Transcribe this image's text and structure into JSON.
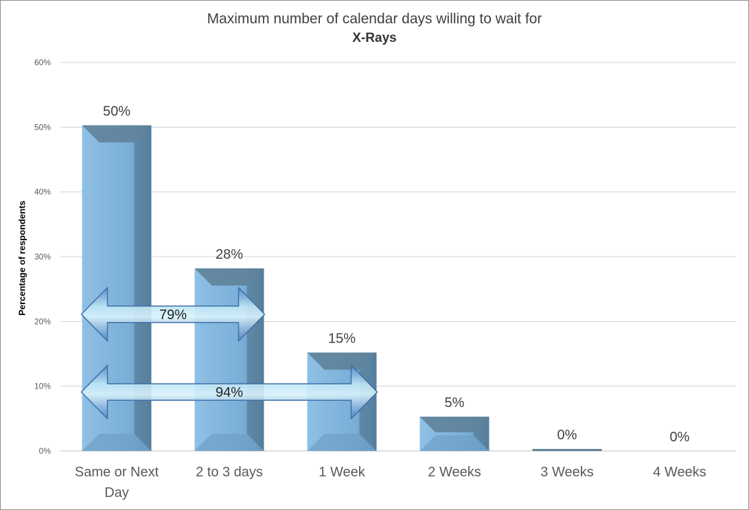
{
  "chart_data": {
    "type": "bar",
    "title": "Maximum number of calendar days willing to wait for",
    "subtitle": "X-Rays",
    "xlabel": "",
    "ylabel": "Percentage of respondents",
    "categories": [
      [
        "Same or Next",
        "Day"
      ],
      [
        "2 to 3 days"
      ],
      [
        "1 Week"
      ],
      [
        "2 Weeks"
      ],
      [
        "3 Weeks"
      ],
      [
        "4 Weeks"
      ]
    ],
    "values": [
      50.3,
      28.2,
      15.2,
      5.3,
      0.3,
      0
    ],
    "data_labels": [
      "50%",
      "28%",
      "15%",
      "5%",
      "0%",
      "0%"
    ],
    "ylim": [
      0,
      60
    ],
    "yticks": [
      0,
      10,
      20,
      30,
      40,
      50,
      60
    ],
    "ytick_labels": [
      "0%",
      "10%",
      "20%",
      "30%",
      "40%",
      "50%",
      "60%"
    ],
    "grid": true,
    "legend": "none",
    "bar_color": "#7fb0d8",
    "annotations": [
      {
        "label": "79%",
        "span": [
          0,
          1
        ],
        "y": 21
      },
      {
        "label": "94%",
        "span": [
          0,
          2
        ],
        "y": 9
      }
    ]
  }
}
